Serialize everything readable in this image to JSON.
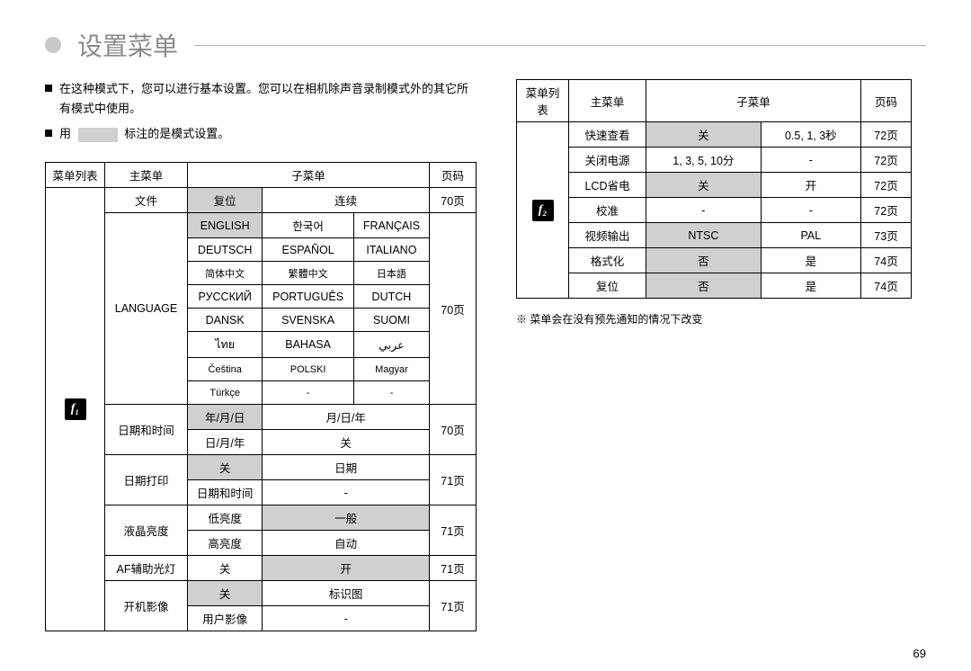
{
  "title": "设置菜单",
  "intro1_part1": "在这种模式下，您可以进行基本设置。您可以在相机除声音录制模式外的其它所有模式中使用。",
  "intro2_before": "用",
  "intro2_after": "标注的是模式设置。",
  "icon1": "f₁",
  "icon2": "f₂",
  "headers": {
    "menu_list": "菜单列表",
    "main_menu": "主菜单",
    "sub_menu": "子菜单",
    "page": "页码"
  },
  "left_rows": {
    "file_label": "文件",
    "file_reset": "复位",
    "file_continuous": "连续",
    "file_page": "70页",
    "language_label": "LANGUAGE",
    "lang_page": "70页",
    "langs": [
      [
        "ENGLISH",
        "한국어",
        "FRANÇAIS"
      ],
      [
        "DEUTSCH",
        "ESPAÑOL",
        "ITALIANO"
      ],
      [
        "简体中文",
        "繁體中文",
        "日本語"
      ],
      [
        "РУССКИЙ",
        "PORTUGUÊS",
        "DUTCH"
      ],
      [
        "DANSK",
        "SVENSKA",
        "SUOMI"
      ],
      [
        "ไทย",
        "BAHASA",
        "عربي"
      ],
      [
        "Čeština",
        "POLSKI",
        "Magyar"
      ],
      [
        "Türkçe",
        "-",
        "-"
      ]
    ],
    "datetime_label": "日期和时间",
    "dt_ymd": "年/月/日",
    "dt_mdy": "月/日/年",
    "dt_dmy": "日/月/年",
    "dt_off": "关",
    "dt_page": "70页",
    "dateprint_label": "日期打印",
    "dp_off": "关",
    "dp_date": "日期",
    "dp_datetime": "日期和时间",
    "dp_page": "71页",
    "lcd_label": "液晶亮度",
    "lcd_low": "低亮度",
    "lcd_normal": "一般",
    "lcd_high": "高亮度",
    "lcd_auto": "自动",
    "lcd_page": "71页",
    "af_label": "AF辅助光灯",
    "af_off": "关",
    "af_on": "开",
    "af_page": "71页",
    "start_label": "开机影像",
    "start_off": "关",
    "start_logo": "标识图",
    "start_user": "用户影像",
    "start_page": "71页"
  },
  "right_rows": {
    "quick_label": "快速查看",
    "quick_off": "关",
    "quick_sec": "0.5, 1, 3秒",
    "quick_page": "72页",
    "poweroff_label": "关闭电源",
    "poweroff_min": "1, 3, 5, 10分",
    "poweroff_page": "72页",
    "lcdsave_label": "LCD省电",
    "lcdsave_off": "关",
    "lcdsave_on": "开",
    "lcdsave_page": "72页",
    "cal_label": "校准",
    "cal_page": "72页",
    "video_label": "视频输出",
    "video_ntsc": "NTSC",
    "video_pal": "PAL",
    "video_page": "73页",
    "format_label": "格式化",
    "format_no": "否",
    "format_yes": "是",
    "format_page": "74页",
    "reset_label": "复位",
    "reset_no": "否",
    "reset_yes": "是",
    "reset_page": "74页"
  },
  "note": "※ 菜单会在没有预先通知的情况下改变",
  "page_number": "69",
  "colors": {
    "shade": "#d0d0d0",
    "title_gray": "#8a8a8a",
    "line_gray": "#b5b5b5"
  }
}
